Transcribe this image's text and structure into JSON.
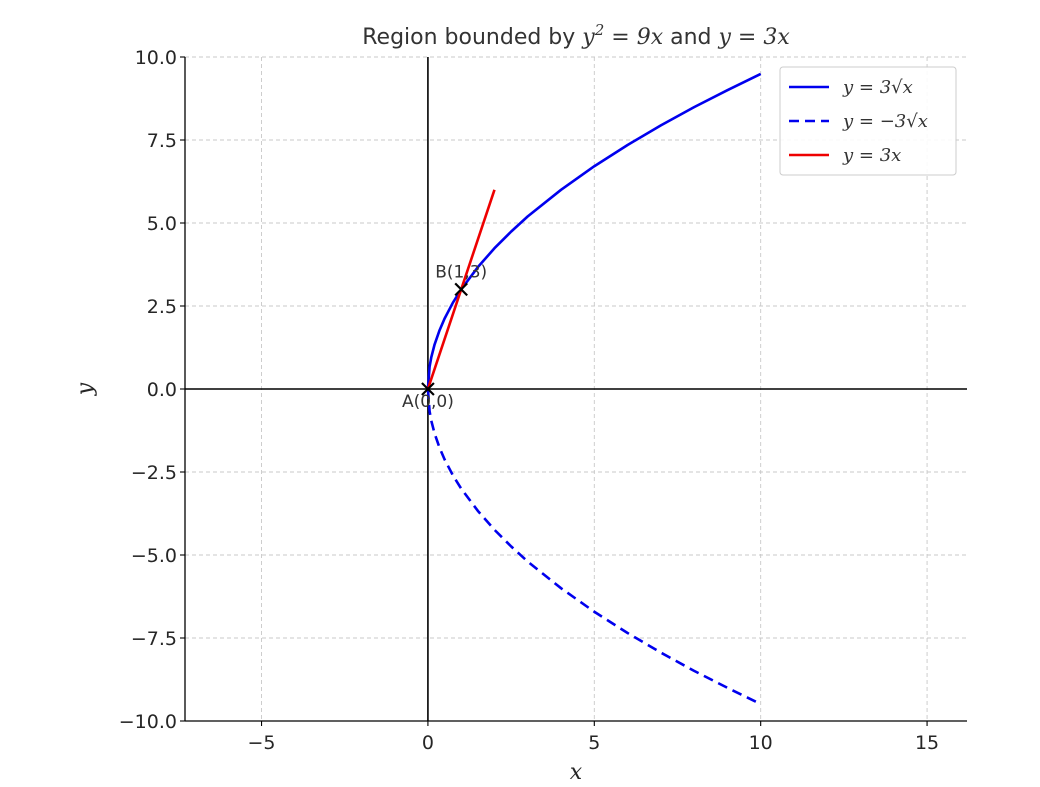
{
  "chart_data": {
    "type": "line",
    "title": "Region bounded by y² = 9x and y = 3x",
    "title_parts": {
      "pre": "Region bounded by ",
      "expr1": "y",
      "sup": "2",
      "expr1b": " = 9x",
      "mid": " and ",
      "expr2": "y = 3x"
    },
    "xlabel": "x",
    "ylabel": "y",
    "xlim": [
      -7.3,
      16.2
    ],
    "ylim": [
      -10,
      10
    ],
    "x_ticks": [
      -5,
      0,
      5,
      10,
      15
    ],
    "x_tick_labels": [
      "−5",
      "0",
      "5",
      "10",
      "15"
    ],
    "y_ticks": [
      -10,
      -7.5,
      -5,
      -2.5,
      0,
      2.5,
      5,
      7.5,
      10
    ],
    "y_tick_labels": [
      "−10.0",
      "−7.5",
      "−5.0",
      "−2.5",
      "0.0",
      "2.5",
      "5.0",
      "7.5",
      "10.0"
    ],
    "grid": true,
    "legend_position": "top-right",
    "series": [
      {
        "name": "y = 3√x",
        "color": "#0000ee",
        "style": "solid",
        "x": [
          0,
          0.05,
          0.1,
          0.2,
          0.35,
          0.5,
          0.75,
          1,
          1.5,
          2,
          2.5,
          3,
          4,
          5,
          6,
          7,
          8,
          9,
          10
        ],
        "y": [
          0,
          0.67,
          0.95,
          1.34,
          1.77,
          2.12,
          2.6,
          3.0,
          3.67,
          4.24,
          4.74,
          5.2,
          6.0,
          6.71,
          7.35,
          7.94,
          8.49,
          9.0,
          9.49
        ]
      },
      {
        "name": "y = −3√x",
        "color": "#0000ee",
        "style": "dashed",
        "x": [
          0,
          0.05,
          0.1,
          0.2,
          0.35,
          0.5,
          0.75,
          1,
          1.5,
          2,
          2.5,
          3,
          4,
          5,
          6,
          7,
          8,
          9,
          10
        ],
        "y": [
          0,
          -0.67,
          -0.95,
          -1.34,
          -1.77,
          -2.12,
          -2.6,
          -3.0,
          -3.67,
          -4.24,
          -4.74,
          -5.2,
          -6.0,
          -6.71,
          -7.35,
          -7.94,
          -8.49,
          -9.0,
          -9.49
        ]
      },
      {
        "name": "y = 3x",
        "color": "#ee0000",
        "style": "solid",
        "x": [
          0,
          2
        ],
        "y": [
          0,
          6
        ]
      }
    ],
    "points": [
      {
        "label": "A(0,0)",
        "x": 0,
        "y": 0,
        "label_position": "below"
      },
      {
        "label": "B(1,3)",
        "x": 1,
        "y": 3,
        "label_position": "above"
      }
    ],
    "legend": [
      {
        "label": "y = 3√x",
        "color": "#0000ee",
        "style": "solid"
      },
      {
        "label": "y = −3√x",
        "color": "#0000ee",
        "style": "dashed"
      },
      {
        "label": "y = 3x",
        "color": "#ee0000",
        "style": "solid"
      }
    ]
  }
}
